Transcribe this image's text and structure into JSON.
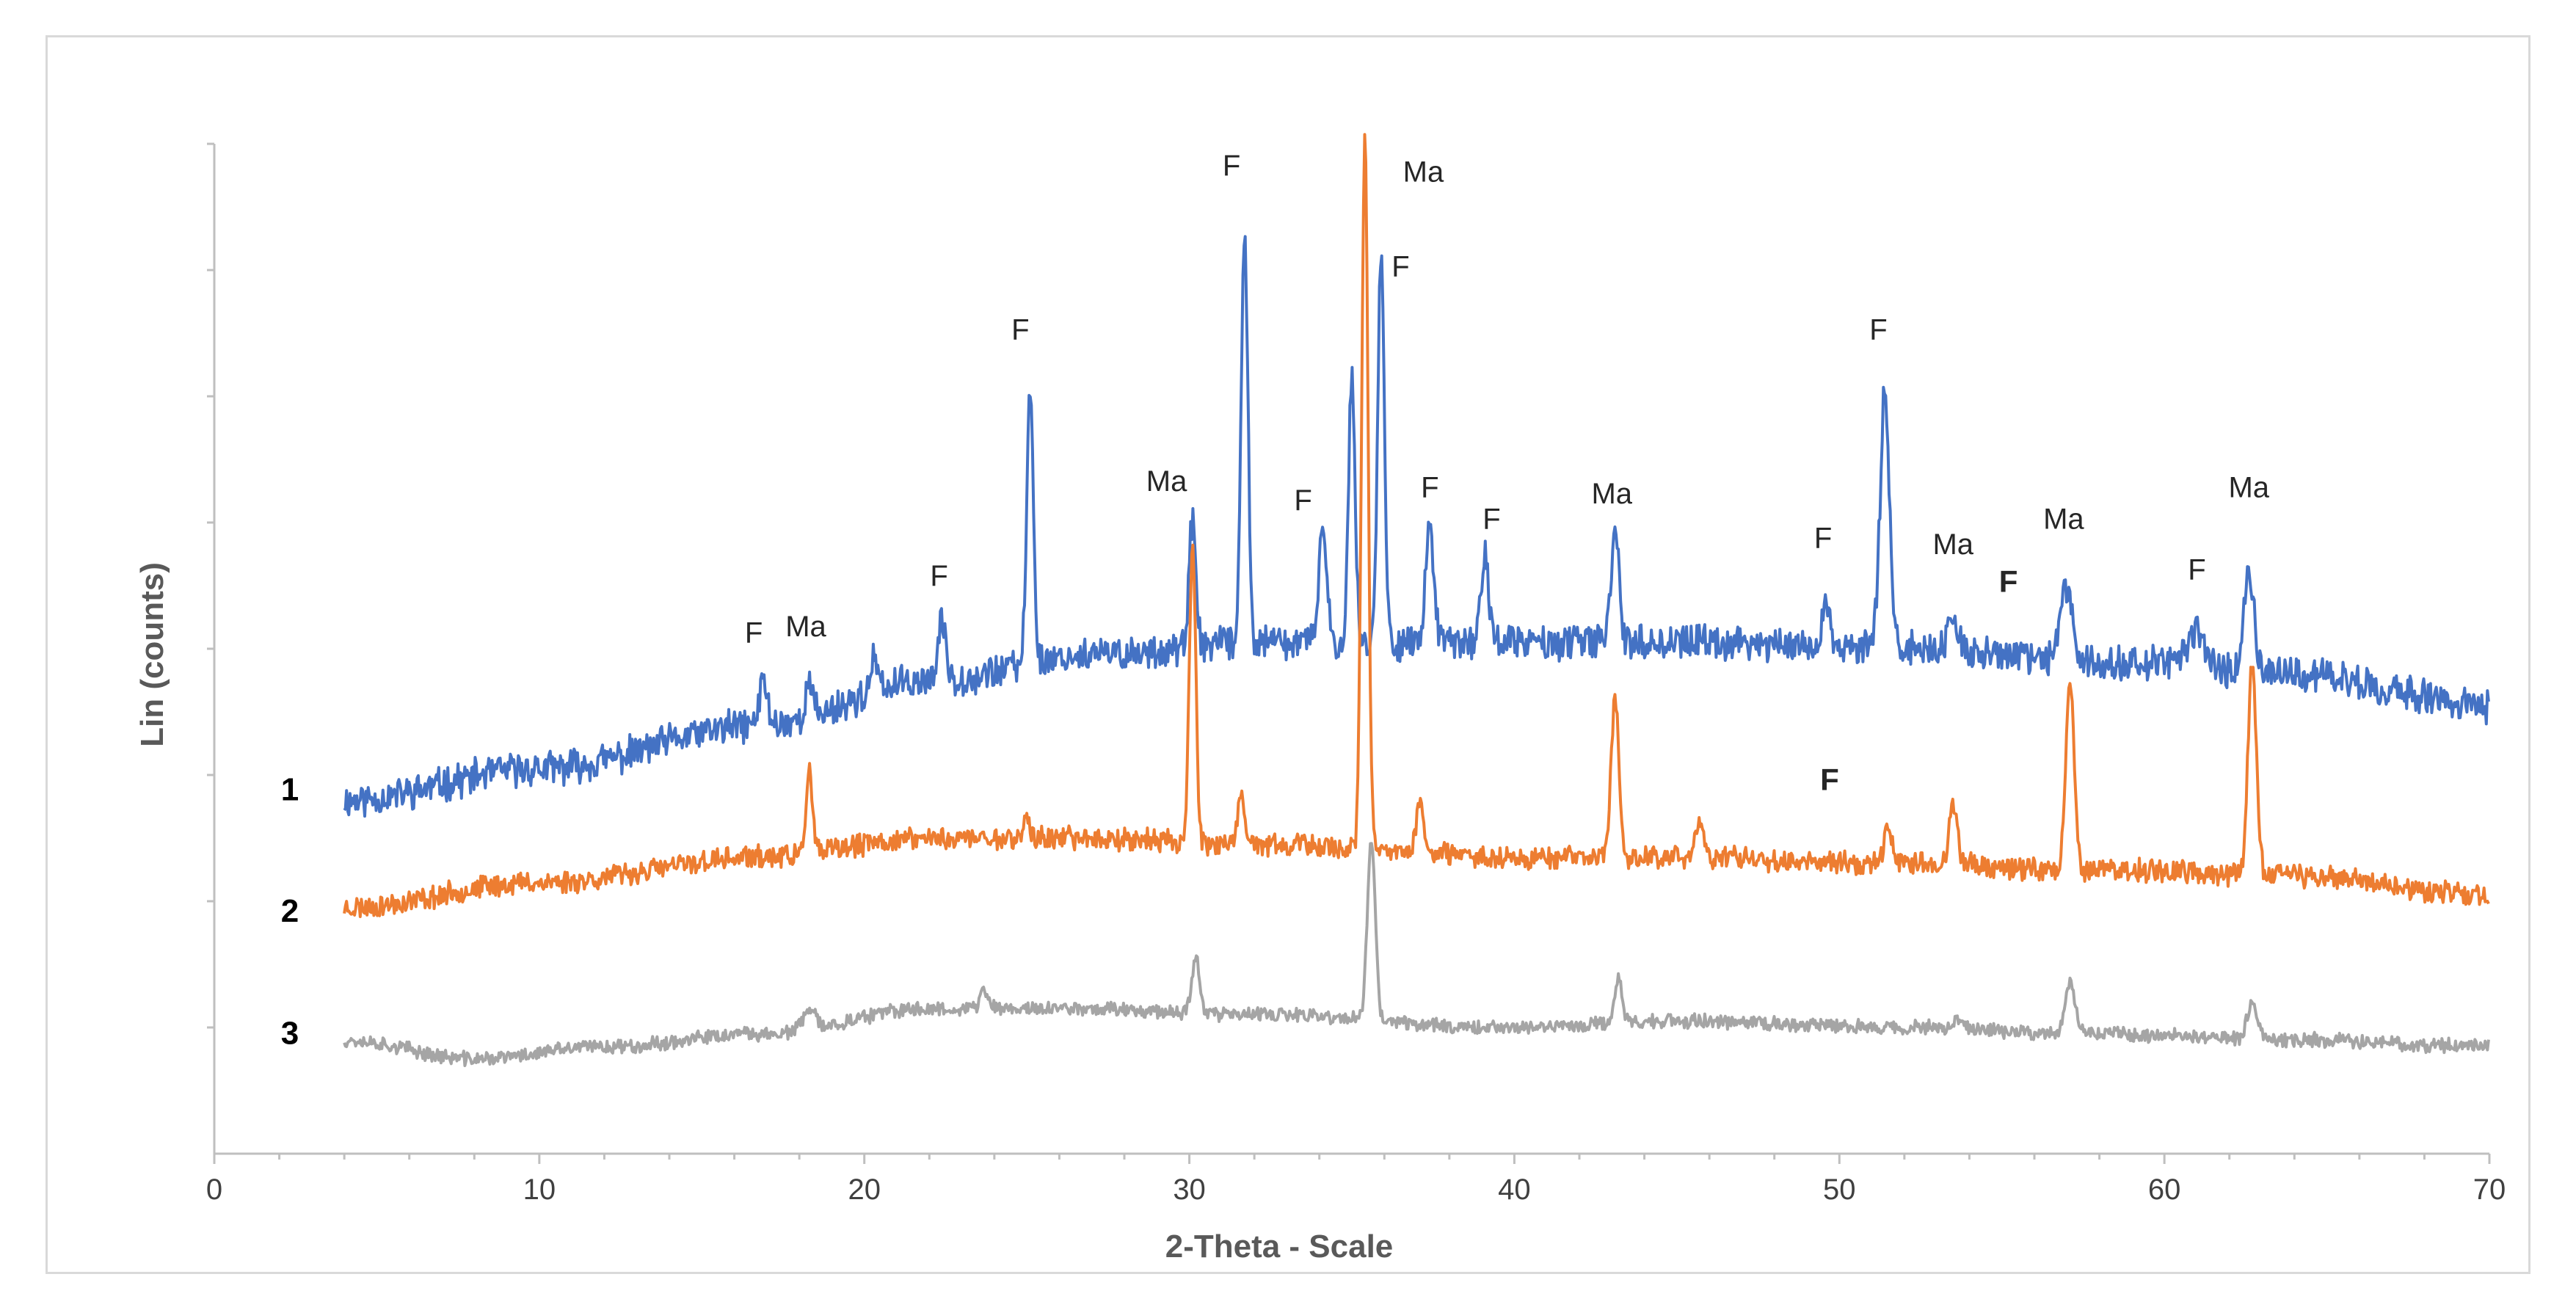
{
  "chart_data": {
    "type": "line",
    "title": "",
    "xlabel": "2-Theta - Scale",
    "ylabel": "Lin (counts)",
    "xlim": [
      0,
      70
    ],
    "ylim": [
      0,
      8
    ],
    "x_ticks": [
      0,
      10,
      20,
      30,
      40,
      50,
      60,
      70
    ],
    "x_tick_labels": [
      "0",
      "10",
      "20",
      "30",
      "40",
      "50",
      "60",
      "70"
    ],
    "y_tick_values": [
      1,
      2,
      3,
      4,
      5,
      6,
      7,
      8
    ],
    "x_range_data": [
      4,
      70
    ],
    "series": [
      {
        "name": "1",
        "label": "1",
        "color": "#4472c4",
        "label_y": 2.88,
        "baseline": [
          [
            4,
            2.8
          ],
          [
            10,
            3.05
          ],
          [
            17,
            3.4
          ],
          [
            22,
            3.75
          ],
          [
            27,
            3.95
          ],
          [
            32,
            4.05
          ],
          [
            40,
            4.05
          ],
          [
            45,
            4.05
          ],
          [
            52,
            4.0
          ],
          [
            58,
            3.9
          ],
          [
            64,
            3.8
          ],
          [
            70,
            3.55
          ]
        ],
        "noise": 0.12,
        "seed": 11,
        "peaks": [
          {
            "x": 16.9,
            "h": 0.35,
            "w": 0.12
          },
          {
            "x": 18.3,
            "h": 0.25,
            "w": 0.12
          },
          {
            "x": 20.3,
            "h": 0.25,
            "w": 0.1
          },
          {
            "x": 22.4,
            "h": 0.45,
            "w": 0.12
          },
          {
            "x": 25.1,
            "h": 2.2,
            "w": 0.1
          },
          {
            "x": 30.1,
            "h": 1.0,
            "w": 0.1
          },
          {
            "x": 31.7,
            "h": 3.3,
            "w": 0.1
          },
          {
            "x": 34.1,
            "h": 0.9,
            "w": 0.12
          },
          {
            "x": 35.0,
            "h": 2.1,
            "w": 0.1
          },
          {
            "x": 35.9,
            "h": 3.1,
            "w": 0.1
          },
          {
            "x": 37.4,
            "h": 0.95,
            "w": 0.12
          },
          {
            "x": 39.1,
            "h": 0.7,
            "w": 0.12
          },
          {
            "x": 43.1,
            "h": 0.95,
            "w": 0.12
          },
          {
            "x": 49.6,
            "h": 0.35,
            "w": 0.12
          },
          {
            "x": 51.4,
            "h": 2.1,
            "w": 0.14
          },
          {
            "x": 53.5,
            "h": 0.25,
            "w": 0.15
          },
          {
            "x": 57.0,
            "h": 0.6,
            "w": 0.18
          },
          {
            "x": 61.0,
            "h": 0.3,
            "w": 0.3
          },
          {
            "x": 62.6,
            "h": 0.8,
            "w": 0.15
          }
        ]
      },
      {
        "name": "2",
        "label": "2",
        "color": "#ed7d31",
        "label_y": 1.92,
        "baseline": [
          [
            4,
            1.95
          ],
          [
            10,
            2.15
          ],
          [
            17,
            2.35
          ],
          [
            22,
            2.5
          ],
          [
            27,
            2.5
          ],
          [
            32,
            2.45
          ],
          [
            40,
            2.35
          ],
          [
            45,
            2.35
          ],
          [
            52,
            2.3
          ],
          [
            58,
            2.25
          ],
          [
            64,
            2.2
          ],
          [
            70,
            2.05
          ]
        ],
        "noise": 0.08,
        "seed": 23,
        "peaks": [
          {
            "x": 18.3,
            "h": 0.65,
            "w": 0.1
          },
          {
            "x": 25.0,
            "h": 0.15,
            "w": 0.1
          },
          {
            "x": 30.1,
            "h": 2.35,
            "w": 0.1
          },
          {
            "x": 31.6,
            "h": 0.35,
            "w": 0.1
          },
          {
            "x": 35.4,
            "h": 5.6,
            "w": 0.1
          },
          {
            "x": 37.1,
            "h": 0.4,
            "w": 0.12
          },
          {
            "x": 43.1,
            "h": 1.25,
            "w": 0.12
          },
          {
            "x": 45.7,
            "h": 0.3,
            "w": 0.12
          },
          {
            "x": 51.5,
            "h": 0.3,
            "w": 0.12
          },
          {
            "x": 53.5,
            "h": 0.5,
            "w": 0.12
          },
          {
            "x": 57.1,
            "h": 1.45,
            "w": 0.13
          },
          {
            "x": 62.7,
            "h": 1.65,
            "w": 0.13
          }
        ]
      },
      {
        "name": "3",
        "label": "3",
        "color": "#a5a5a5",
        "label_y": 0.95,
        "baseline": [
          [
            4,
            0.9
          ],
          [
            8,
            0.75
          ],
          [
            12,
            0.85
          ],
          [
            17,
            0.95
          ],
          [
            22,
            1.15
          ],
          [
            27,
            1.15
          ],
          [
            32,
            1.1
          ],
          [
            40,
            1.0
          ],
          [
            45,
            1.05
          ],
          [
            52,
            1.0
          ],
          [
            58,
            0.95
          ],
          [
            64,
            0.9
          ],
          [
            70,
            0.85
          ]
        ],
        "noise": 0.05,
        "seed": 37,
        "peaks": [
          {
            "x": 18.3,
            "h": 0.15,
            "w": 0.2
          },
          {
            "x": 23.7,
            "h": 0.15,
            "w": 0.12
          },
          {
            "x": 30.2,
            "h": 0.45,
            "w": 0.12
          },
          {
            "x": 35.6,
            "h": 1.45,
            "w": 0.12
          },
          {
            "x": 43.2,
            "h": 0.35,
            "w": 0.12
          },
          {
            "x": 53.7,
            "h": 0.1,
            "w": 0.15
          },
          {
            "x": 57.1,
            "h": 0.4,
            "w": 0.15
          },
          {
            "x": 62.7,
            "h": 0.3,
            "w": 0.15
          }
        ]
      }
    ],
    "annotations": [
      {
        "text": "F",
        "x": 16.6,
        "y": 4.05,
        "bold": false
      },
      {
        "text": "Ma",
        "x": 18.2,
        "y": 4.1,
        "bold": false
      },
      {
        "text": "F",
        "x": 22.3,
        "y": 4.5,
        "bold": false
      },
      {
        "text": "F",
        "x": 24.8,
        "y": 6.45,
        "bold": false
      },
      {
        "text": "Ma",
        "x": 29.3,
        "y": 5.25,
        "bold": false
      },
      {
        "text": "F",
        "x": 31.3,
        "y": 7.75,
        "bold": false
      },
      {
        "text": "F",
        "x": 33.5,
        "y": 5.1,
        "bold": false
      },
      {
        "text": "Ma",
        "x": 37.2,
        "y": 7.7,
        "bold": false
      },
      {
        "text": "F",
        "x": 36.5,
        "y": 6.95,
        "bold": false
      },
      {
        "text": "F",
        "x": 37.4,
        "y": 5.2,
        "bold": false
      },
      {
        "text": "F",
        "x": 39.3,
        "y": 4.95,
        "bold": false
      },
      {
        "text": "Ma",
        "x": 43.0,
        "y": 5.15,
        "bold": false
      },
      {
        "text": "F",
        "x": 49.5,
        "y": 4.8,
        "bold": false
      },
      {
        "text": "F",
        "x": 51.2,
        "y": 6.45,
        "bold": false
      },
      {
        "text": "Ma",
        "x": 53.5,
        "y": 4.75,
        "bold": false
      },
      {
        "text": "F",
        "x": 55.2,
        "y": 4.45,
        "bold": true
      },
      {
        "text": "Ma",
        "x": 56.9,
        "y": 4.95,
        "bold": false
      },
      {
        "text": "F",
        "x": 61.0,
        "y": 4.55,
        "bold": false
      },
      {
        "text": "Ma",
        "x": 62.6,
        "y": 5.2,
        "bold": false
      },
      {
        "text": "F",
        "x": 49.7,
        "y": 2.88,
        "bold": true
      }
    ]
  }
}
